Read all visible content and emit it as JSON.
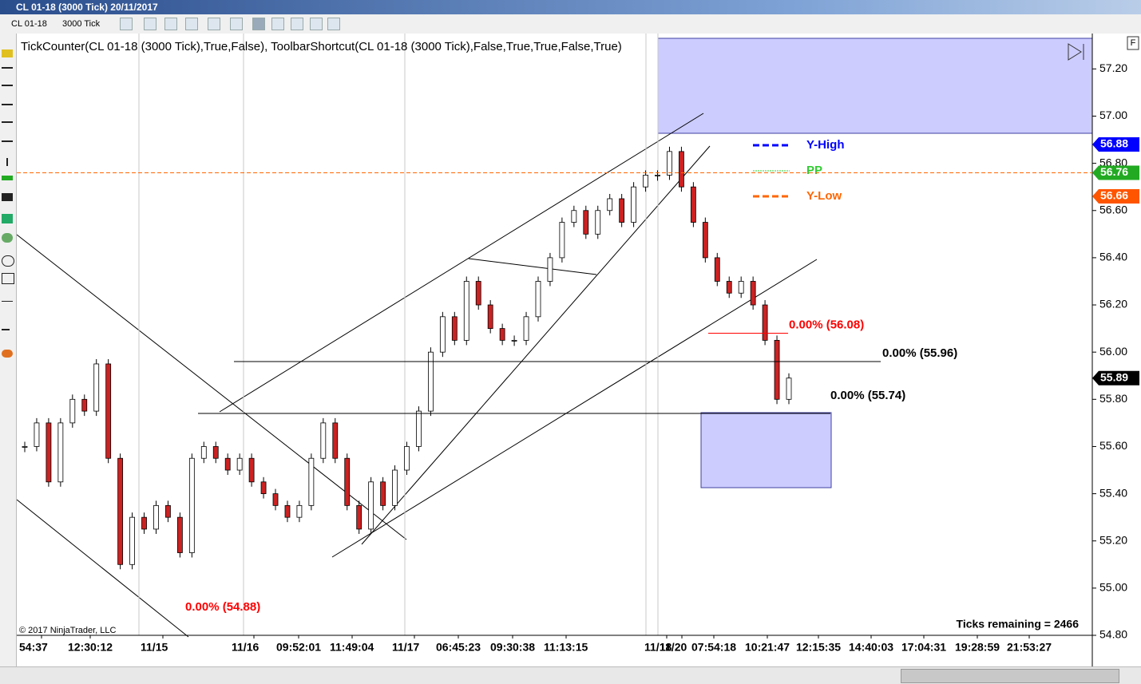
{
  "window": {
    "title": "CL 01-18 (3000 Tick)  20/11/2017",
    "instrument": "CL 01-18",
    "period": "3000 Tick"
  },
  "chart_data": {
    "type": "candlestick",
    "title": "TickCounter(CL 01-18 (3000 Tick),True,False), ToolbarShortcut(CL 01-18 (3000 Tick),False,True,True,False,True)",
    "copyright": "© 2017 NinjaTrader, LLC",
    "ticks_remaining": "Ticks remaining = 2466",
    "closes": [
      55.6,
      55.7,
      55.45,
      55.7,
      55.8,
      55.75,
      55.95,
      55.55,
      55.1,
      55.3,
      55.25,
      55.35,
      55.3,
      55.15,
      55.55,
      55.6,
      55.55,
      55.5,
      55.55,
      55.45,
      55.4,
      55.35,
      55.3,
      55.35,
      55.55,
      55.7,
      55.55,
      55.35,
      55.25,
      55.45,
      55.35,
      55.5,
      55.6,
      55.75,
      56.0,
      56.15,
      56.05,
      56.3,
      56.2,
      56.1,
      56.05,
      56.05,
      56.15,
      56.3,
      56.4,
      56.55,
      56.6,
      56.5,
      56.6,
      56.65,
      56.55,
      56.7,
      56.75,
      56.75,
      56.85,
      56.7,
      56.55,
      56.4,
      56.3,
      56.25,
      56.3,
      56.2,
      56.05,
      55.8,
      55.89
    ],
    "ylim": [
      54.8,
      57.35
    ],
    "yticks": [
      {
        "value": 54.8,
        "label": "54.80"
      },
      {
        "value": 55.0,
        "label": "55.00"
      },
      {
        "value": 55.2,
        "label": "55.20"
      },
      {
        "value": 55.4,
        "label": "55.40"
      },
      {
        "value": 55.6,
        "label": "55.60"
      },
      {
        "value": 55.8,
        "label": "55.80"
      },
      {
        "value": 56.0,
        "label": "56.00"
      },
      {
        "value": 56.2,
        "label": "56.20"
      },
      {
        "value": 56.4,
        "label": "56.40"
      },
      {
        "value": 56.6,
        "label": "56.60"
      },
      {
        "value": 56.8,
        "label": "56.80"
      },
      {
        "value": 57.0,
        "label": "57.00"
      },
      {
        "value": 57.2,
        "label": "57.20"
      }
    ],
    "xticks": [
      "54:37",
      "12:30:12",
      "11/15",
      "11/16",
      "09:52:01",
      "11:49:04",
      "11/17",
      "06:45:23",
      "09:30:38",
      "11:13:15",
      "11/18",
      "11/20",
      "07:54:18",
      "10:21:47",
      "12:15:35",
      "14:40:03",
      "17:04:31",
      "19:28:59",
      "21:53:27"
    ],
    "annotations": [
      {
        "label": "0.00% (54.88)",
        "value": 54.88,
        "color": "#ff0000"
      },
      {
        "label": "0.00% (56.08)",
        "value": 56.08,
        "color": "#ff0000"
      },
      {
        "label": "0.00% (55.96)",
        "value": 55.96,
        "color": "#000000"
      },
      {
        "label": "0.00% (55.74)",
        "value": 55.74,
        "color": "#000000"
      }
    ],
    "legend": [
      {
        "name": "Y-High",
        "color": "#0000ff"
      },
      {
        "name": "PP",
        "color": "#33cc33"
      },
      {
        "name": "Y-Low",
        "color": "#ff6600"
      }
    ],
    "price_markers": [
      {
        "value": 56.88,
        "color": "#0000ff"
      },
      {
        "value": 56.76,
        "color": "#22aa22",
        "line_color": "#ff6600"
      },
      {
        "value": 56.66,
        "color": "#ff5500"
      },
      {
        "value": 55.89,
        "color": "#000000"
      }
    ]
  }
}
